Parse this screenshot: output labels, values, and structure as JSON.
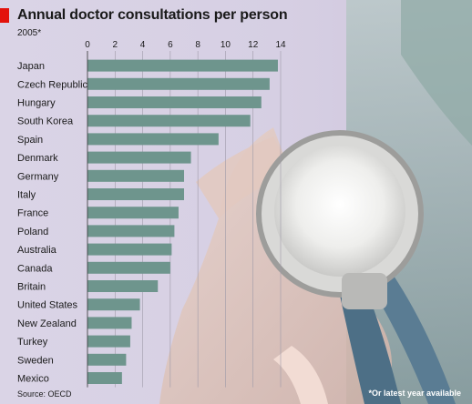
{
  "title": "Annual doctor consultations per person",
  "subtitle": "2005*",
  "source": "Source: OECD",
  "footnote": "*Or latest year available",
  "colors": {
    "bar": "#6e958d",
    "accent": "#e3120b",
    "gridline": "#9e9aa8"
  },
  "chart_data": {
    "type": "bar",
    "orientation": "horizontal",
    "categories": [
      "Japan",
      "Czech Republic",
      "Hungary",
      "South Korea",
      "Spain",
      "Denmark",
      "Germany",
      "Italy",
      "France",
      "Poland",
      "Australia",
      "Canada",
      "Britain",
      "United States",
      "New Zealand",
      "Turkey",
      "Sweden",
      "Mexico"
    ],
    "values": [
      13.8,
      13.2,
      12.6,
      11.8,
      9.5,
      7.5,
      7.0,
      7.0,
      6.6,
      6.3,
      6.1,
      6.0,
      5.1,
      3.8,
      3.2,
      3.1,
      2.8,
      2.5
    ],
    "xlim": [
      0,
      14
    ],
    "ticks": [
      0,
      2,
      4,
      6,
      8,
      10,
      12,
      14
    ],
    "xlabel": "",
    "ylabel": "",
    "tick_position": "top",
    "grid": false
  }
}
